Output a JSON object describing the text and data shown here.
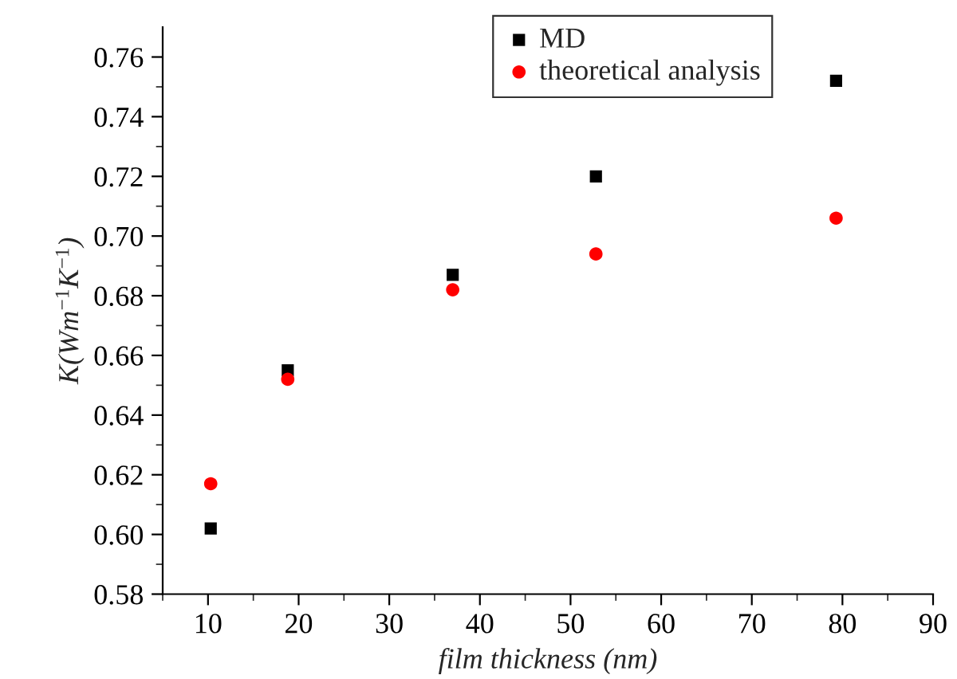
{
  "chart_data": {
    "type": "scatter",
    "xlabel": "film thickness (nm)",
    "ylabel": "K(Wm$^{−1}$K$^{−1}$)",
    "xlim": [
      5,
      90
    ],
    "xticks": [
      10,
      20,
      30,
      40,
      50,
      60,
      70,
      80,
      90
    ],
    "ylim": [
      0.58,
      0.77
    ],
    "yticks": [
      0.58,
      {
        "value": 0.6,
        "label": "0.60"
      },
      0.62,
      0.64,
      0.66,
      0.68,
      {
        "value": 0.7,
        "label": "0.70"
      },
      0.72,
      0.74,
      0.76
    ],
    "grid": false,
    "legend": "top",
    "series": [
      {
        "name": "MD",
        "color": "#000000",
        "marker": "square",
        "x": [
          10.3,
          18.8,
          37.0,
          52.8,
          79.3
        ],
        "values": [
          0.602,
          0.655,
          0.687,
          0.72,
          0.752
        ]
      },
      {
        "name": "theoretical analysis",
        "color": "#ff0000",
        "marker": "circle",
        "x": [
          10.3,
          18.8,
          37.0,
          52.8,
          79.3
        ],
        "values": [
          0.617,
          0.652,
          0.682,
          0.694,
          0.706
        ]
      }
    ]
  }
}
